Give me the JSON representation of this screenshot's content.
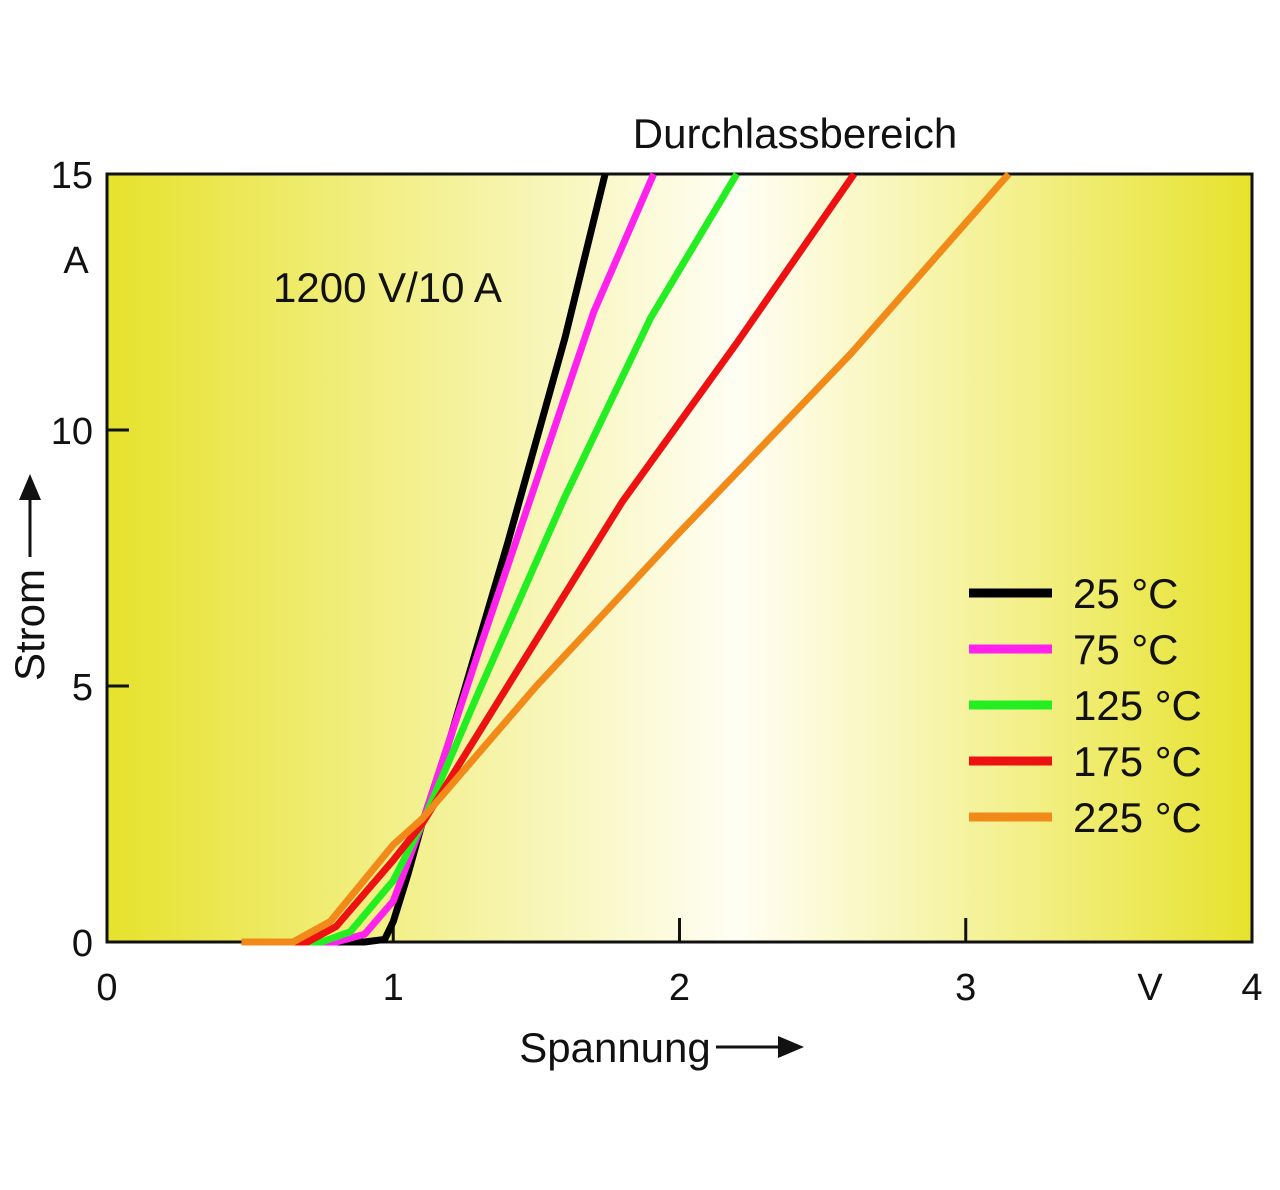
{
  "chart_data": {
    "type": "line",
    "title": "Durchlassbereich",
    "annotation": "1200 V/10 A",
    "xlabel": "Spannung",
    "ylabel": "Strom",
    "x_unit": "V",
    "y_unit": "A",
    "xlim": [
      0,
      4
    ],
    "ylim": [
      0,
      15
    ],
    "x_ticks": [
      "0",
      "1",
      "2",
      "3",
      "4"
    ],
    "y_ticks": [
      "0",
      "5",
      "10",
      "15"
    ],
    "grid": false,
    "legend_position": "lower-right",
    "series": [
      {
        "name": "25 °C",
        "color": "#000000",
        "points": [
          [
            0.47,
            0
          ],
          [
            0.9,
            0
          ],
          [
            0.97,
            0.05
          ],
          [
            1.0,
            0.4
          ],
          [
            1.05,
            1.3
          ],
          [
            1.1,
            2.3
          ],
          [
            1.2,
            4.0
          ],
          [
            1.4,
            7.8
          ],
          [
            1.6,
            11.8
          ],
          [
            1.74,
            15
          ]
        ]
      },
      {
        "name": "75 °C",
        "color": "#ff22ee",
        "points": [
          [
            0.47,
            0
          ],
          [
            0.8,
            0
          ],
          [
            0.9,
            0.15
          ],
          [
            1.0,
            0.8
          ],
          [
            1.1,
            2.3
          ],
          [
            1.3,
            5.7
          ],
          [
            1.5,
            9.0
          ],
          [
            1.7,
            12.3
          ],
          [
            1.91,
            15
          ]
        ]
      },
      {
        "name": "125 °C",
        "color": "#22ee22",
        "points": [
          [
            0.47,
            0
          ],
          [
            0.75,
            0
          ],
          [
            0.85,
            0.2
          ],
          [
            1.0,
            1.2
          ],
          [
            1.1,
            2.3
          ],
          [
            1.3,
            4.9
          ],
          [
            1.6,
            8.7
          ],
          [
            1.9,
            12.2
          ],
          [
            2.2,
            15
          ]
        ]
      },
      {
        "name": "175 °C",
        "color": "#ee1111",
        "points": [
          [
            0.47,
            0
          ],
          [
            0.7,
            0
          ],
          [
            0.8,
            0.3
          ],
          [
            1.0,
            1.6
          ],
          [
            1.1,
            2.3
          ],
          [
            1.4,
            5.0
          ],
          [
            1.8,
            8.6
          ],
          [
            2.2,
            11.7
          ],
          [
            2.61,
            15
          ]
        ]
      },
      {
        "name": "225 °C",
        "color": "#f28a1a",
        "points": [
          [
            0.47,
            0
          ],
          [
            0.65,
            0
          ],
          [
            0.78,
            0.4
          ],
          [
            1.0,
            1.9
          ],
          [
            1.1,
            2.4
          ],
          [
            1.5,
            5.0
          ],
          [
            2.0,
            8.0
          ],
          [
            2.6,
            11.5
          ],
          [
            3.15,
            15
          ]
        ]
      }
    ]
  }
}
